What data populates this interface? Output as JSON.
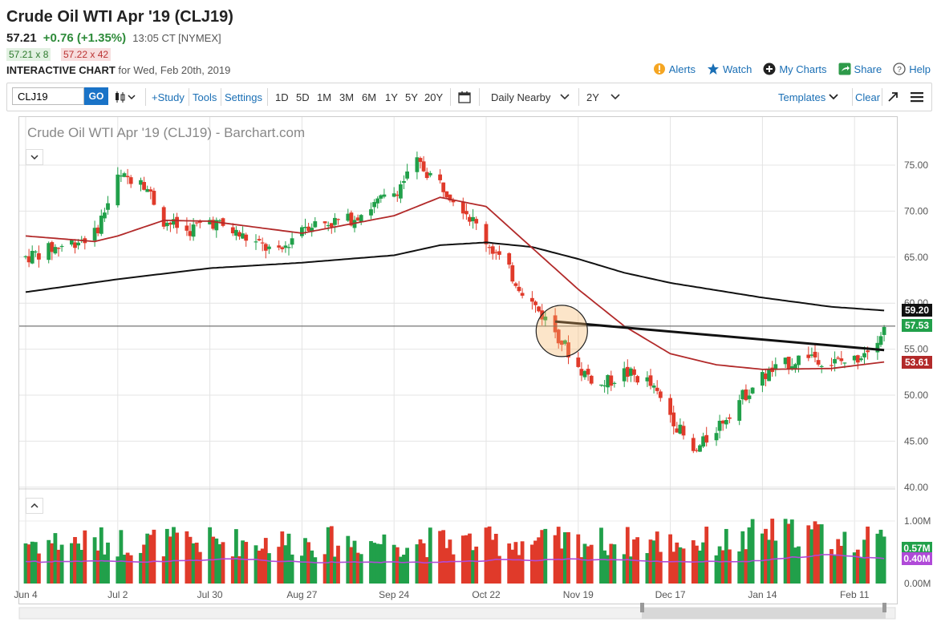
{
  "header": {
    "title": "Crude Oil WTI Apr '19 (CLJ19)",
    "last": "57.21",
    "change": "+0.76 (+1.35%)",
    "time": "13:05 CT [NYMEX]",
    "bid": "57.21 x 8",
    "ask": "57.22 x 42",
    "chart_label": "INTERACTIVE CHART",
    "chart_date": "for Wed, Feb 20th, 2019"
  },
  "links": {
    "alerts": "Alerts",
    "watch": "Watch",
    "my_charts": "My Charts",
    "share": "Share",
    "help": "Help"
  },
  "toolbar": {
    "symbol": "CLJ19",
    "go": "GO",
    "study": "+Study",
    "tools": "Tools",
    "settings": "Settings",
    "periods": [
      "1D",
      "5D",
      "1M",
      "3M",
      "6M",
      "1Y",
      "5Y",
      "20Y"
    ],
    "interval": "Daily Nearby",
    "range": "2Y",
    "templates": "Templates",
    "clear": "Clear"
  },
  "colors": {
    "up": "#21a04a",
    "down": "#e03a2a",
    "ma50": "#b22a2a",
    "ma200": "#111111",
    "volume_ma": "#b04ad8",
    "link": "#1a6fb5"
  },
  "chart_data": {
    "type": "candlestick",
    "title": "Crude Oil WTI Apr '19 (CLJ19) - Barchart.com",
    "x_ticks": [
      "Jun 4",
      "Jul 2",
      "Jul 30",
      "Aug 27",
      "Sep 24",
      "Oct 22",
      "Nov 19",
      "Dec 17",
      "Jan 14",
      "Feb 11"
    ],
    "y_ticks": [
      "75.00",
      "70.00",
      "65.00",
      "60.00",
      "55.00",
      "50.00",
      "45.00",
      "40.00"
    ],
    "ylim": [
      40,
      78
    ],
    "volume_ticks": [
      "1.00M",
      "0.00M"
    ],
    "labels": {
      "ma200": "59.20",
      "last": "57.53",
      "ma50": "53.61",
      "volume": "0.57M",
      "volume_ma": "0.40M"
    },
    "price_path": [
      [
        "Jun 4",
        65.0
      ],
      [
        "Jun 18",
        66.6
      ],
      [
        "Jun 25",
        67.5
      ],
      [
        "Jul 2",
        73.5
      ],
      [
        "Jul 9",
        73.8
      ],
      [
        "Jul 16",
        69.0
      ],
      [
        "Jul 23",
        67.8
      ],
      [
        "Jul 30",
        69.0
      ],
      [
        "Aug 13",
        66.5
      ],
      [
        "Aug 20",
        65.3
      ],
      [
        "Aug 27",
        68.5
      ],
      [
        "Sep 10",
        69.0
      ],
      [
        "Sep 24",
        72.0
      ],
      [
        "Oct 1",
        75.2
      ],
      [
        "Oct 8",
        73.0
      ],
      [
        "Oct 15",
        70.5
      ],
      [
        "Oct 22",
        66.8
      ],
      [
        "Nov 5",
        60.0
      ],
      [
        "Nov 12",
        57.0
      ],
      [
        "Nov 19",
        53.0
      ],
      [
        "Nov 26",
        51.0
      ],
      [
        "Dec 3",
        52.5
      ],
      [
        "Dec 10",
        51.5
      ],
      [
        "Dec 17",
        48.0
      ],
      [
        "Dec 24",
        43.5
      ],
      [
        "Dec 31",
        46.5
      ],
      [
        "Jan 7",
        49.5
      ],
      [
        "Jan 14",
        52.0
      ],
      [
        "Jan 21",
        53.3
      ],
      [
        "Jan 28",
        54.5
      ],
      [
        "Feb 4",
        53.5
      ],
      [
        "Feb 11",
        53.8
      ],
      [
        "Feb 20",
        57.2
      ]
    ],
    "ma50_path": [
      [
        "Jun 4",
        67.3
      ],
      [
        "Jun 25",
        66.7
      ],
      [
        "Jul 2",
        67.3
      ],
      [
        "Jul 16",
        69.0
      ],
      [
        "Jul 30",
        68.9
      ],
      [
        "Aug 27",
        67.6
      ],
      [
        "Sep 24",
        69.5
      ],
      [
        "Oct 8",
        71.5
      ],
      [
        "Oct 22",
        70.5
      ],
      [
        "Nov 5",
        66.0
      ],
      [
        "Nov 19",
        61.5
      ],
      [
        "Dec 3",
        57.5
      ],
      [
        "Dec 17",
        54.5
      ],
      [
        "Dec 31",
        53.3
      ],
      [
        "Jan 14",
        52.8
      ],
      [
        "Feb 4",
        52.9
      ],
      [
        "Feb 20",
        53.61
      ]
    ],
    "ma200_path": [
      [
        "Jun 4",
        61.2
      ],
      [
        "Jul 2",
        62.6
      ],
      [
        "Jul 30",
        63.8
      ],
      [
        "Aug 27",
        64.4
      ],
      [
        "Sep 24",
        65.2
      ],
      [
        "Oct 8",
        66.3
      ],
      [
        "Oct 22",
        66.6
      ],
      [
        "Nov 5",
        66.1
      ],
      [
        "Nov 19",
        64.8
      ],
      [
        "Dec 3",
        63.3
      ],
      [
        "Dec 17",
        62.2
      ],
      [
        "Jan 14",
        60.6
      ],
      [
        "Feb 4",
        59.6
      ],
      [
        "Feb 20",
        59.2
      ]
    ],
    "annotations": {
      "horizontal_line": 57.5,
      "trendline": [
        [
          "Nov 12",
          58.0
        ],
        [
          "Feb 20",
          54.9
        ]
      ],
      "circle_center": [
        "Nov 14",
        57.5
      ]
    }
  }
}
